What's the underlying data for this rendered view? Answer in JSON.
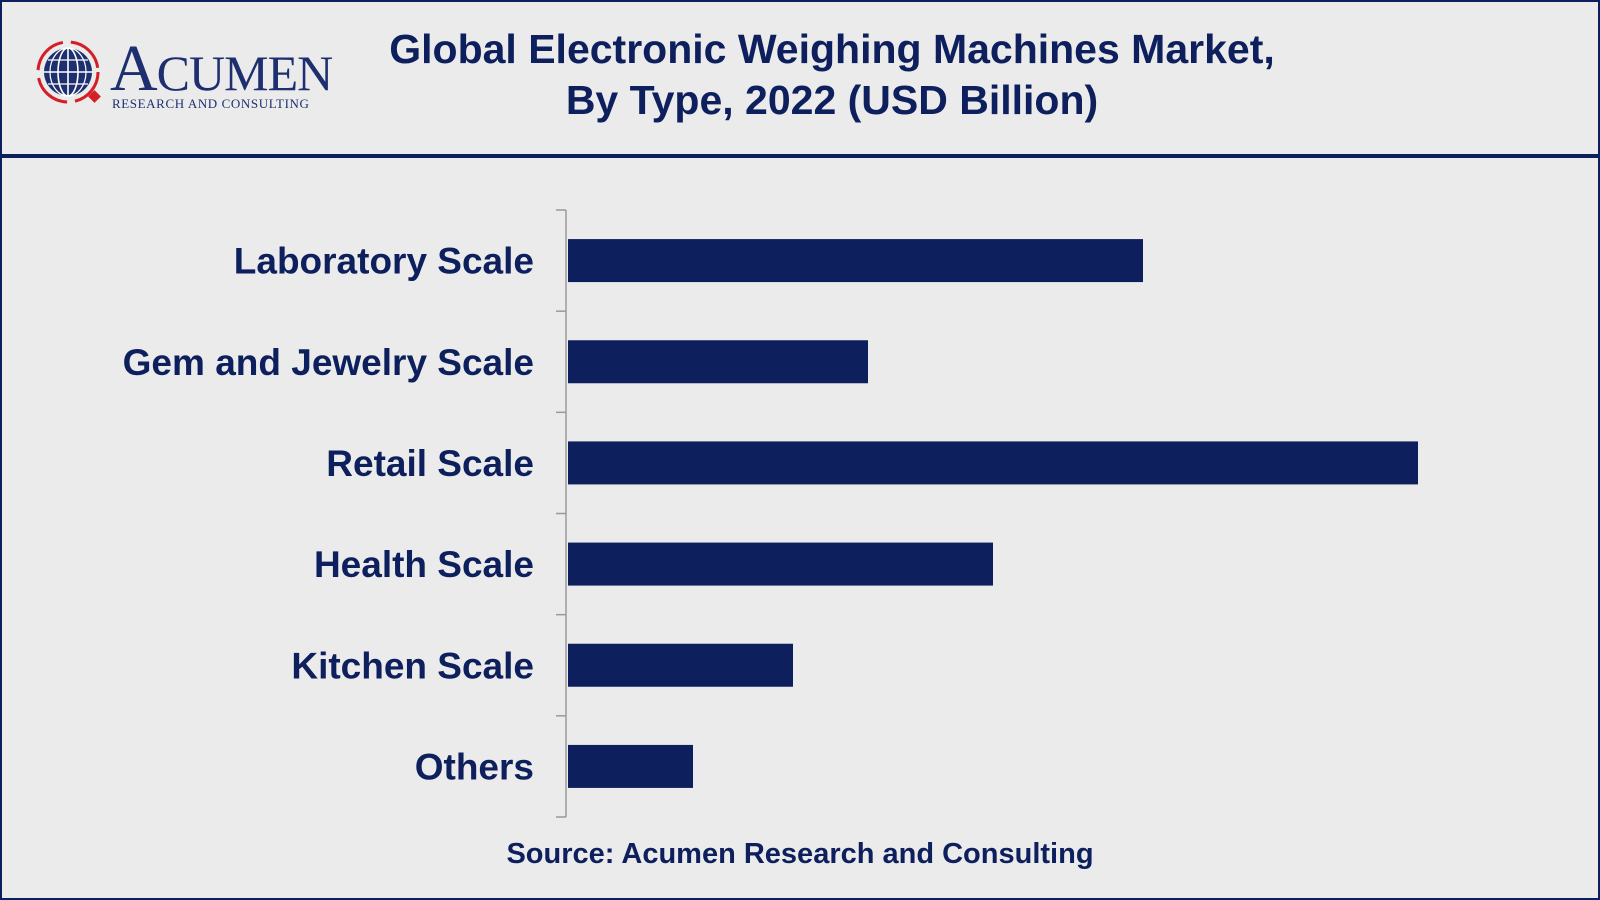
{
  "brand": {
    "name_first": "A",
    "name_rest": "CUMEN",
    "tagline": "RESEARCH AND CONSULTING"
  },
  "header": {
    "title_line1": "Global Electronic Weighing Machines Market,",
    "title_line2": "By Type, 2022 (USD Billion)"
  },
  "source": "Source: Acumen Research and Consulting",
  "colors": {
    "bar": "#0d1f5c",
    "text": "#0d1f5c",
    "logo_red": "#d41f26",
    "axis": "#999999"
  },
  "chart_data": {
    "type": "bar",
    "orientation": "horizontal",
    "title": "Global Electronic Weighing Machines Market, By Type, 2022 (USD Billion)",
    "categories": [
      "Laboratory Scale",
      "Gem and Jewelry Scale",
      "Retail Scale",
      "Health Scale",
      "Kitchen Scale",
      "Others"
    ],
    "values": [
      5.75,
      3.0,
      8.5,
      4.25,
      2.25,
      1.25
    ],
    "xlim": [
      0,
      10
    ],
    "xlabel": "",
    "ylabel": "",
    "grid": false,
    "legend": "none"
  }
}
